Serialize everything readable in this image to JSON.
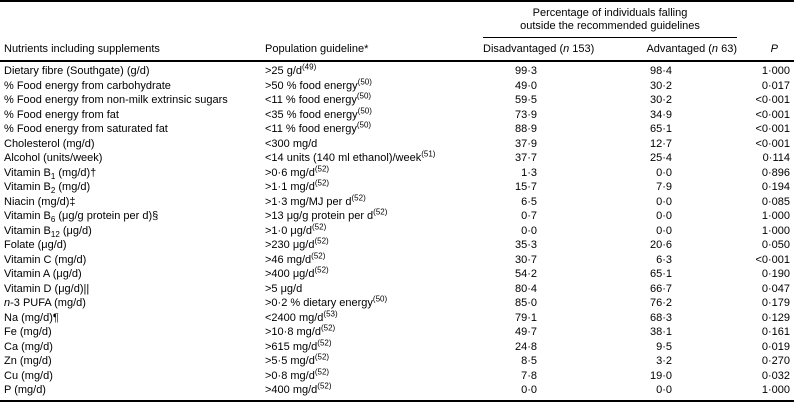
{
  "table": {
    "group_header": {
      "line1": "Percentage of individuals falling",
      "line2": "outside the recommended guidelines"
    },
    "columns": {
      "nutrient": "Nutrients including supplements",
      "guideline": "Population guideline*",
      "disadvantaged": [
        {
          "t": "Disadvantaged ("
        },
        {
          "t": "n",
          "s": "i"
        },
        {
          "t": " 153)"
        }
      ],
      "advantaged": [
        {
          "t": "Advantaged ("
        },
        {
          "t": "n",
          "s": "i"
        },
        {
          "t": " 63)"
        }
      ],
      "p": [
        {
          "t": "P",
          "s": "i"
        }
      ]
    },
    "rows": [
      {
        "nutrient": "Dietary fibre (Southgate) (g/d)",
        "guideline": [
          {
            "t": ">25 g/d"
          },
          {
            "t": "(49)",
            "s": "sup"
          }
        ],
        "disadvantaged": "99·3",
        "advantaged": "98·4",
        "p": "1·000"
      },
      {
        "nutrient": "% Food energy from carbohydrate",
        "guideline": [
          {
            "t": ">50 % food energy"
          },
          {
            "t": "(50)",
            "s": "sup"
          }
        ],
        "disadvantaged": "49·0",
        "advantaged": "30·2",
        "p": "0·017"
      },
      {
        "nutrient": "% Food energy from non-milk extrinsic sugars",
        "guideline": [
          {
            "t": "<11 % food energy"
          },
          {
            "t": "(50)",
            "s": "sup"
          }
        ],
        "disadvantaged": "59·5",
        "advantaged": "30·2",
        "p": "<0·001"
      },
      {
        "nutrient": "% Food energy from fat",
        "guideline": [
          {
            "t": "<35 % food energy"
          },
          {
            "t": "(50)",
            "s": "sup"
          }
        ],
        "disadvantaged": "73·9",
        "advantaged": "34·9",
        "p": "<0·001"
      },
      {
        "nutrient": "% Food energy from saturated fat",
        "guideline": [
          {
            "t": "<11 % food energy"
          },
          {
            "t": "(50)",
            "s": "sup"
          }
        ],
        "disadvantaged": "88·9",
        "advantaged": "65·1",
        "p": "<0·001"
      },
      {
        "nutrient": "Cholesterol (mg/d)",
        "guideline": "<300 mg/d",
        "disadvantaged": "37·9",
        "advantaged": "12·7",
        "p": "<0·001"
      },
      {
        "nutrient": "Alcohol (units/week)",
        "guideline": [
          {
            "t": "<14 units (140 ml ethanol)/week"
          },
          {
            "t": "(51)",
            "s": "sup"
          }
        ],
        "disadvantaged": "37·7",
        "advantaged": "25·4",
        "p": "0·114"
      },
      {
        "nutrient": [
          {
            "t": "Vitamin B"
          },
          {
            "t": "1",
            "s": "sub"
          },
          {
            "t": " (mg/d)†"
          }
        ],
        "guideline": [
          {
            "t": ">0·6 mg/d"
          },
          {
            "t": "(52)",
            "s": "sup"
          }
        ],
        "disadvantaged": "1·3",
        "advantaged": "0·0",
        "p": "0·896"
      },
      {
        "nutrient": [
          {
            "t": "Vitamin B"
          },
          {
            "t": "2",
            "s": "sub"
          },
          {
            "t": " (mg/d)"
          }
        ],
        "guideline": [
          {
            "t": ">1·1 mg/d"
          },
          {
            "t": "(52)",
            "s": "sup"
          }
        ],
        "disadvantaged": "15·7",
        "advantaged": "7·9",
        "p": "0·194"
      },
      {
        "nutrient": "Niacin (mg/d)‡",
        "guideline": [
          {
            "t": ">1·3 mg/MJ per d"
          },
          {
            "t": "(52)",
            "s": "sup"
          }
        ],
        "disadvantaged": "6·5",
        "advantaged": "0·0",
        "p": "0·085"
      },
      {
        "nutrient": [
          {
            "t": "Vitamin B"
          },
          {
            "t": "6",
            "s": "sub"
          },
          {
            "t": " (μg/g protein per d)§"
          }
        ],
        "guideline": [
          {
            "t": ">13 μg/g protein per d"
          },
          {
            "t": "(52)",
            "s": "sup"
          }
        ],
        "disadvantaged": "0·7",
        "advantaged": "0·0",
        "p": "1·000"
      },
      {
        "nutrient": [
          {
            "t": "Vitamin B"
          },
          {
            "t": "12",
            "s": "sub"
          },
          {
            "t": " (μg/d)"
          }
        ],
        "guideline": [
          {
            "t": ">1·0 μg/d"
          },
          {
            "t": "(52)",
            "s": "sup"
          }
        ],
        "disadvantaged": "0·0",
        "advantaged": "0·0",
        "p": "1·000"
      },
      {
        "nutrient": "Folate (μg/d)",
        "guideline": [
          {
            "t": ">230 μg/d"
          },
          {
            "t": "(52)",
            "s": "sup"
          }
        ],
        "disadvantaged": "35·3",
        "advantaged": "20·6",
        "p": "0·050"
      },
      {
        "nutrient": "Vitamin C (mg/d)",
        "guideline": [
          {
            "t": ">46 mg/d"
          },
          {
            "t": "(52)",
            "s": "sup"
          }
        ],
        "disadvantaged": "30·7",
        "advantaged": "6·3",
        "p": "<0·001"
      },
      {
        "nutrient": "Vitamin A (μg/d)",
        "guideline": [
          {
            "t": ">400 μg/d"
          },
          {
            "t": "(52)",
            "s": "sup"
          }
        ],
        "disadvantaged": "54·2",
        "advantaged": "65·1",
        "p": "0·190"
      },
      {
        "nutrient": "Vitamin D (μg/d)||",
        "guideline": ">5 μg/d",
        "disadvantaged": "80·4",
        "advantaged": "66·7",
        "p": "0·047"
      },
      {
        "nutrient": [
          {
            "t": "n",
            "s": "i"
          },
          {
            "t": "-3 PUFA (mg/d)"
          }
        ],
        "guideline": [
          {
            "t": ">0·2 % dietary energy"
          },
          {
            "t": "(50)",
            "s": "sup"
          }
        ],
        "disadvantaged": "85·0",
        "advantaged": "76·2",
        "p": "0·179"
      },
      {
        "nutrient": "Na (mg/d)¶",
        "guideline": [
          {
            "t": "<2400 mg/d"
          },
          {
            "t": "(53)",
            "s": "sup"
          }
        ],
        "disadvantaged": "79·1",
        "advantaged": "68·3",
        "p": "0·129"
      },
      {
        "nutrient": "Fe (mg/d)",
        "guideline": [
          {
            "t": ">10·8 mg/d"
          },
          {
            "t": "(52)",
            "s": "sup"
          }
        ],
        "disadvantaged": "49·7",
        "advantaged": "38·1",
        "p": "0·161"
      },
      {
        "nutrient": "Ca (mg/d)",
        "guideline": [
          {
            "t": ">615 mg/d"
          },
          {
            "t": "(52)",
            "s": "sup"
          }
        ],
        "disadvantaged": "24·8",
        "advantaged": "9·5",
        "p": "0·019"
      },
      {
        "nutrient": "Zn (mg/d)",
        "guideline": [
          {
            "t": ">5·5 mg/d"
          },
          {
            "t": "(52)",
            "s": "sup"
          }
        ],
        "disadvantaged": "8·5",
        "advantaged": "3·2",
        "p": "0·270"
      },
      {
        "nutrient": "Cu (mg/d)",
        "guideline": [
          {
            "t": ">0·8 mg/d"
          },
          {
            "t": "(52)",
            "s": "sup"
          }
        ],
        "disadvantaged": "7·8",
        "advantaged": "19·0",
        "p": "0·032"
      },
      {
        "nutrient": "P (mg/d)",
        "guideline": [
          {
            "t": ">400 mg/d"
          },
          {
            "t": "(52)",
            "s": "sup"
          }
        ],
        "disadvantaged": "0·0",
        "advantaged": "0·0",
        "p": "1·000"
      }
    ]
  }
}
